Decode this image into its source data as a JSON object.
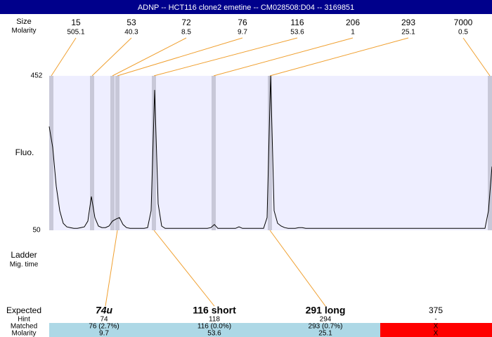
{
  "header": {
    "title": "ADNP -- HCT116 clone2 emetine -- CM028508:D04 -- 3169851"
  },
  "ladder": {
    "labels": [
      "Size",
      "Molarity"
    ],
    "sizes": [
      15,
      53,
      72,
      76,
      116,
      206,
      293,
      7000
    ],
    "molarity": [
      505.1,
      40.3,
      8.5,
      9.7,
      53.6,
      1,
      25.1,
      0.5
    ]
  },
  "chart_data": {
    "type": "line",
    "ylabel": "Fluo.",
    "ylim": [
      50,
      452
    ],
    "yticks": [
      452,
      50
    ],
    "color": "#000000",
    "values": [
      320,
      266,
      165,
      101,
      68,
      59,
      57,
      55,
      55,
      57,
      59,
      74,
      138,
      83,
      61,
      57,
      57,
      61,
      74,
      79,
      83,
      65,
      57,
      55,
      55,
      55,
      55,
      55,
      57,
      101,
      415,
      119,
      61,
      55,
      55,
      55,
      55,
      55,
      55,
      55,
      55,
      55,
      55,
      55,
      55,
      55,
      57,
      65,
      55,
      55,
      55,
      55,
      55,
      55,
      59,
      55,
      55,
      55,
      55,
      55,
      55,
      55,
      83,
      452,
      101,
      68,
      61,
      57,
      55,
      55,
      55,
      57,
      57,
      55,
      55,
      55,
      55,
      55,
      55,
      55,
      55,
      55,
      55,
      55,
      55,
      55,
      55,
      55,
      55,
      55,
      55,
      55,
      55,
      55,
      55,
      55,
      55,
      55,
      55,
      55,
      55,
      55,
      55,
      55,
      55,
      55,
      55,
      55,
      55,
      55,
      55,
      55,
      55,
      55,
      55,
      55,
      55,
      55,
      55,
      55,
      55,
      55,
      55,
      55,
      55,
      101,
      216
    ]
  },
  "lower": {
    "labels": [
      "Ladder",
      "Mig. time"
    ]
  },
  "table": {
    "row_labels": [
      "Expected",
      "Hint",
      "Matched",
      "Molarity"
    ],
    "rows": [
      [
        "74u",
        "116 short",
        "291 long",
        "375"
      ],
      [
        "74",
        "118",
        "294",
        "-"
      ],
      [
        "76 (2.7%)",
        "116 (0.0%)",
        "293 (0.7%)",
        "X"
      ],
      [
        "9.7",
        "53.6",
        "25.1",
        "X"
      ]
    ]
  }
}
